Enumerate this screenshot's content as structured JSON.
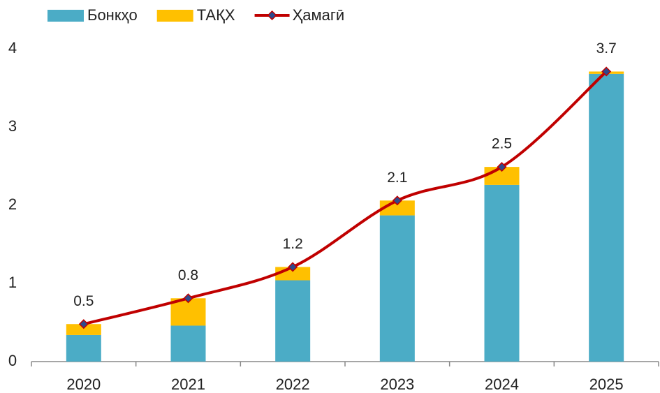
{
  "chart_data": {
    "type": "bar_line",
    "categories": [
      "2020",
      "2021",
      "2022",
      "2023",
      "2024",
      "2025"
    ],
    "series": [
      {
        "name": "Бонкҳо",
        "color": "#4bacc6",
        "type": "bar",
        "values": [
          0.34,
          0.46,
          1.04,
          1.87,
          2.26,
          3.68
        ]
      },
      {
        "name": "ТАҚХ",
        "color": "#ffc000",
        "type": "bar",
        "values": [
          0.14,
          0.35,
          0.17,
          0.19,
          0.23,
          0.03
        ]
      },
      {
        "name": "Ҳамагӣ",
        "color": "#c00000",
        "marker_color": "#2e4a8c",
        "type": "line",
        "values": [
          0.48,
          0.81,
          1.21,
          2.06,
          2.49,
          3.71
        ],
        "value_labels": [
          "0.5",
          "0.8",
          "1.2",
          "2.1",
          "2.5",
          "3.7"
        ]
      }
    ],
    "ylim": [
      0,
      4
    ],
    "yticks": [
      0,
      1,
      2,
      3,
      4
    ],
    "grid": false,
    "stacked": true,
    "legend": "top-left"
  }
}
